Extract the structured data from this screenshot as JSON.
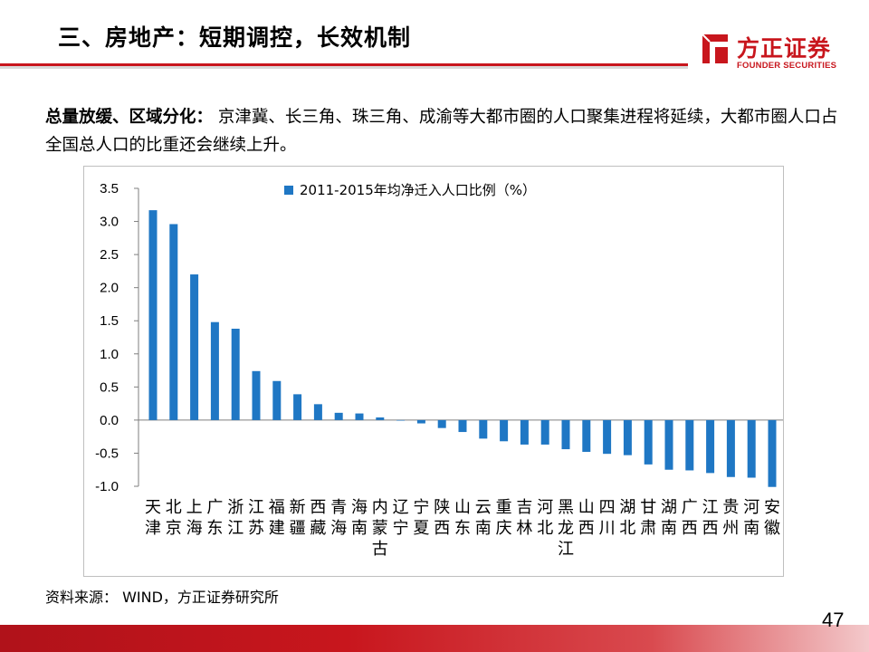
{
  "slide": {
    "title": "三、房地产：短期调控，长效机制",
    "summary_label": "总量放缓、区域分化：",
    "summary_text": " 京津冀、长三角、珠三角、成渝等大都市圈的人口聚集进程将延续，大都市圈人口占全国总人口的比重还会继续上升。",
    "source": "资料来源： WIND，方正证券研究所",
    "page_number": "47"
  },
  "logo": {
    "name": "方正证券",
    "english": "FOUNDER SECURITIES"
  },
  "colors": {
    "brand_red": "#c8161d",
    "bar_blue": "#1f77c4"
  },
  "chart_data": {
    "type": "bar",
    "title": "",
    "series": [
      {
        "name": "2011-2015年均净迁入人口比例（%）",
        "values": [
          3.17,
          2.96,
          2.2,
          1.48,
          1.38,
          0.74,
          0.59,
          0.39,
          0.24,
          0.11,
          0.1,
          0.04,
          0.0,
          -0.05,
          -0.12,
          -0.18,
          -0.28,
          -0.32,
          -0.37,
          -0.37,
          -0.44,
          -0.48,
          -0.51,
          -0.53,
          -0.67,
          -0.75,
          -0.76,
          -0.8,
          -0.86,
          -0.87,
          -1.01
        ]
      }
    ],
    "categories": [
      "天津",
      "北京",
      "上海",
      "广东",
      "浙江",
      "江苏",
      "福建",
      "新疆",
      "西藏",
      "青海",
      "海南",
      "内蒙古",
      "辽宁",
      "宁夏",
      "陕西",
      "山东",
      "云南",
      "重庆",
      "吉林",
      "河北",
      "黑龙江",
      "山西",
      "四川",
      "湖北",
      "甘肃",
      "湖南",
      "广西",
      "江西",
      "贵州",
      "河南",
      "安徽"
    ],
    "category_lines": [
      [
        "天",
        "津"
      ],
      [
        "北",
        "京"
      ],
      [
        "上",
        "海"
      ],
      [
        "广",
        "东"
      ],
      [
        "浙",
        "江"
      ],
      [
        "江",
        "苏"
      ],
      [
        "福",
        "建"
      ],
      [
        "新",
        "疆"
      ],
      [
        "西",
        "藏"
      ],
      [
        "青",
        "海"
      ],
      [
        "海",
        "南"
      ],
      [
        "内",
        "蒙",
        "古"
      ],
      [
        "辽",
        "宁"
      ],
      [
        "宁",
        "夏"
      ],
      [
        "陕",
        "西"
      ],
      [
        "山",
        "东"
      ],
      [
        "云",
        "南"
      ],
      [
        "重",
        "庆"
      ],
      [
        "吉",
        "林"
      ],
      [
        "河",
        "北"
      ],
      [
        "黑",
        "龙",
        "江"
      ],
      [
        "山",
        "西"
      ],
      [
        "四",
        "川"
      ],
      [
        "湖",
        "北"
      ],
      [
        "甘",
        "肃"
      ],
      [
        "湖",
        "南"
      ],
      [
        "广",
        "西"
      ],
      [
        "江",
        "西"
      ],
      [
        "贵",
        "州"
      ],
      [
        "河",
        "南"
      ],
      [
        "安",
        "徽"
      ]
    ],
    "y_ticks": [
      "3.5",
      "3.0",
      "2.5",
      "2.0",
      "1.5",
      "1.0",
      "0.5",
      "0.0",
      "-0.5",
      "-1.0"
    ],
    "ylim": [
      -1.0,
      3.5
    ],
    "legend_position": "top",
    "grid": false
  }
}
